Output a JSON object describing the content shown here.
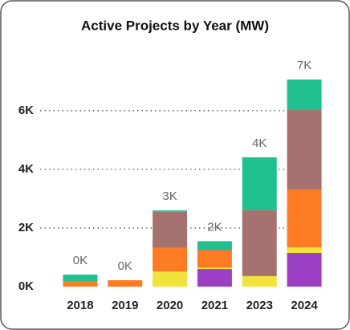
{
  "chart_data": {
    "type": "stacked_bar",
    "title": "Active Projects by Year (MW)",
    "categories": [
      "2018",
      "2019",
      "2020",
      "2021",
      "2023",
      "2024"
    ],
    "series": [
      {
        "color": "#9b3fc4",
        "values": [
          0,
          0,
          0,
          600,
          0,
          1150
        ]
      },
      {
        "color": "#f2e23c",
        "values": [
          0,
          0,
          520,
          50,
          360,
          190
        ]
      },
      {
        "color": "#fd7b22",
        "values": [
          170,
          220,
          800,
          580,
          0,
          1970
        ]
      },
      {
        "color": "#a5726f",
        "values": [
          0,
          0,
          1230,
          50,
          2250,
          2710
        ]
      },
      {
        "color": "#20c08f",
        "values": [
          240,
          0,
          50,
          270,
          1800,
          1040
        ]
      }
    ],
    "total_labels": [
      "0K",
      "0K",
      "3K",
      "2K",
      "4K",
      "7K"
    ],
    "ylim": [
      0,
      7500
    ],
    "yticks": [
      {
        "value": 0,
        "label": "0K"
      },
      {
        "value": 2000,
        "label": "2K"
      },
      {
        "value": 4000,
        "label": "4K"
      },
      {
        "value": 6000,
        "label": "6K"
      }
    ],
    "grid": true
  }
}
